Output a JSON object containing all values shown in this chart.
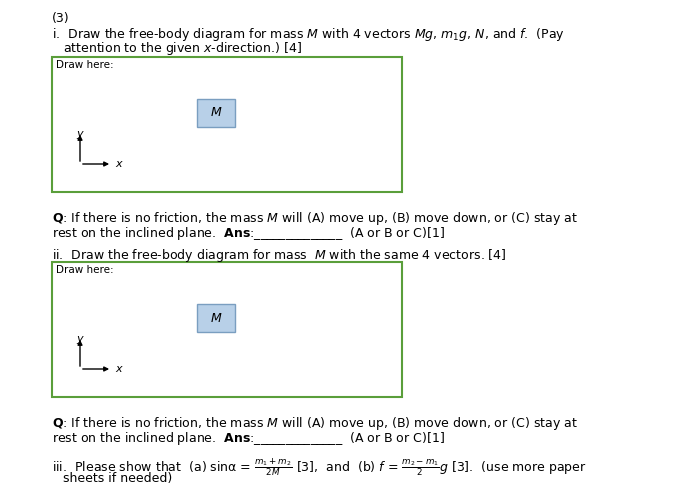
{
  "bg_color": "#ffffff",
  "title_number": "(3)",
  "line1_i": "i.  Draw the free-body diagram for mass $M$ with 4 vectors $Mg$, $m_1g$, $N$, and $f$.  (Pay",
  "line2_i": "    attention to the given $x$-direction.) [4]",
  "box_label": "Draw here:",
  "box_color": "#5a9e3a",
  "M_box_color": "#b8d0e8",
  "M_box_edge": "#7a9ec0",
  "q_line1": "$\\mathbf{Q}$: If there is no friction, the mass $M$ will (A) move up, (B) move down, or (C) stay at",
  "q_line2": "rest on the inclined plane.  $\\mathbf{Ans}$:______________  (A or B or C)[1]",
  "line_ii": "ii.  Draw the free-body diagram for mass  $M$ with the same 4 vectors. [4]",
  "q2_line1": "$\\mathbf{Q}$: If there is no friction, the mass $M$ will (A) move up, (B) move down, or (C) stay at",
  "q2_line2": "rest on the inclined plane.  $\\mathbf{Ans}$:______________  (A or B or C)[1]",
  "line_iii": "iii.  Please show that  (a) sinα = $\\frac{m_1+m_2}{2M}$ [3],  and  (b) $f$ = $\\frac{m_2-m_1}{2}$$g$ [3].  (use more paper",
  "line_iii2": "sheets if needed)",
  "fs_main": 9,
  "fs_label": 7.5,
  "fs_M": 9,
  "fs_axis": 8
}
